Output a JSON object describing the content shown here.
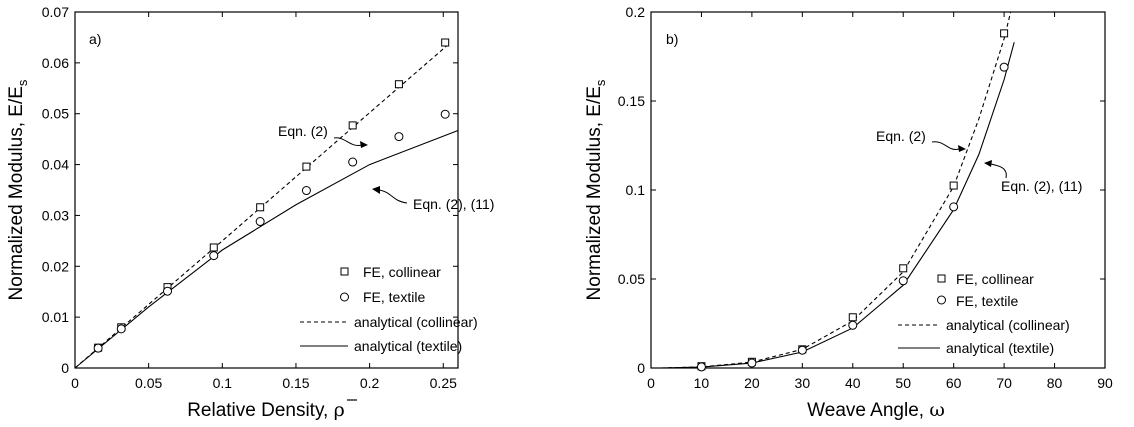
{
  "figure": {
    "panel_a": {
      "panel_label": "a)",
      "ylabel_main": "Normalized Modulus,  E/E",
      "ylabel_sub": "s",
      "xlabel_main": "Relative Density, ",
      "xlabel_symbol": "ρ",
      "annotation_1": "Eqn. (2)",
      "annotation_2": "Eqn. (2), (11)",
      "legend": [
        "FE, collinear",
        "FE, textile",
        "analytical (collinear)",
        "analytical (textile)"
      ]
    },
    "panel_b": {
      "panel_label": "b)",
      "ylabel_main": "Normalized Modulus,  E/E",
      "ylabel_sub": "s",
      "xlabel_main": "Weave Angle, ",
      "xlabel_symbol": "ω",
      "annotation_1": "Eqn. (2)",
      "annotation_2": "Eqn. (2), (11)",
      "legend": [
        "FE, collinear",
        "FE, textile",
        "analytical (collinear)",
        "analytical (textile)"
      ]
    }
  },
  "chart_data": [
    {
      "type": "scatter",
      "panel": "a)",
      "xlabel": "Relative Density, ρ̄",
      "ylabel": "Normalized Modulus, E/Es",
      "xlim": [
        0,
        0.26
      ],
      "ylim": [
        0,
        0.07
      ],
      "xticks": [
        "0",
        "0.05",
        "0.1",
        "0.15",
        "0.2",
        "0.25"
      ],
      "yticks": [
        "0",
        "0.01",
        "0.02",
        "0.03",
        "0.04",
        "0.05",
        "0.06",
        "0.07"
      ],
      "series": [
        {
          "name": "FE, collinear",
          "marker": "square",
          "x": [
            0.0157,
            0.0314,
            0.0628,
            0.0942,
            0.1257,
            0.1571,
            0.1885,
            0.2199,
            0.2513
          ],
          "y": [
            0.004,
            0.008,
            0.0159,
            0.0237,
            0.0316,
            0.0396,
            0.0477,
            0.0558,
            0.064
          ]
        },
        {
          "name": "FE, textile",
          "marker": "circle",
          "x": [
            0.0157,
            0.0314,
            0.0628,
            0.0942,
            0.1257,
            0.1571,
            0.1885,
            0.2199,
            0.2513
          ],
          "y": [
            0.0039,
            0.0077,
            0.0151,
            0.0221,
            0.0288,
            0.0349,
            0.0405,
            0.0455,
            0.0499
          ]
        },
        {
          "name": "analytical (collinear)",
          "line": "dashed",
          "x": [
            0,
            0.05,
            0.1,
            0.15,
            0.2,
            0.255
          ],
          "y": [
            0,
            0.0125,
            0.025,
            0.0376,
            0.0502,
            0.064
          ]
        },
        {
          "name": "analytical (textile)",
          "line": "solid",
          "x": [
            0,
            0.05,
            0.1,
            0.15,
            0.2,
            0.26
          ],
          "y": [
            0,
            0.012,
            0.0232,
            0.0321,
            0.04,
            0.0467
          ]
        }
      ],
      "annotations": [
        "Eqn. (2)",
        "Eqn. (2), (11)"
      ],
      "legend_position": "right"
    },
    {
      "type": "scatter",
      "panel": "b)",
      "xlabel": "Weave Angle, ω",
      "ylabel": "Normalized Modulus, E/Es",
      "xlim": [
        0,
        90
      ],
      "ylim": [
        0,
        0.2
      ],
      "xticks": [
        "0",
        "10",
        "20",
        "30",
        "40",
        "50",
        "60",
        "70",
        "80",
        "90"
      ],
      "yticks": [
        "0",
        "0.05",
        "0.1",
        "0.15",
        "0.2"
      ],
      "series": [
        {
          "name": "FE, collinear",
          "marker": "square",
          "x": [
            10,
            20,
            30,
            40,
            50,
            60,
            70
          ],
          "y": [
            0.001,
            0.0035,
            0.0105,
            0.0285,
            0.056,
            0.1025,
            0.188
          ]
        },
        {
          "name": "FE, textile",
          "marker": "circle",
          "x": [
            10,
            20,
            30,
            40,
            50,
            60,
            70
          ],
          "y": [
            0.0006,
            0.0028,
            0.01,
            0.024,
            0.049,
            0.0905,
            0.169
          ]
        },
        {
          "name": "analytical (collinear)",
          "line": "dashed",
          "x": [
            2,
            10,
            20,
            30,
            40,
            50,
            60,
            65,
            70,
            71.3
          ],
          "y": [
            0,
            0.0006,
            0.0033,
            0.0105,
            0.0265,
            0.054,
            0.102,
            0.14,
            0.185,
            0.2
          ]
        },
        {
          "name": "analytical (textile)",
          "line": "solid",
          "x": [
            2,
            10,
            20,
            30,
            40,
            50,
            60,
            65,
            70,
            72
          ],
          "y": [
            0,
            0.0005,
            0.0028,
            0.009,
            0.0225,
            0.0465,
            0.089,
            0.12,
            0.162,
            0.183
          ]
        }
      ],
      "annotations": [
        "Eqn. (2)",
        "Eqn. (2), (11)"
      ],
      "legend_position": "bottom-right"
    }
  ]
}
